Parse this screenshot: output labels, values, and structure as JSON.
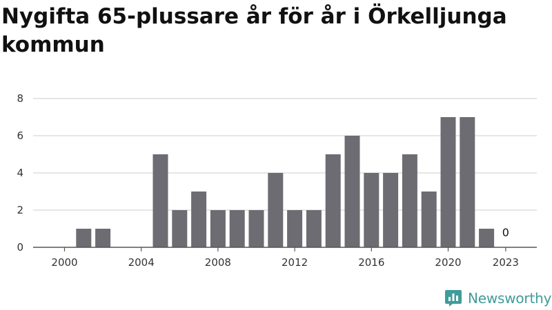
{
  "brand": {
    "name": "Newsworthy",
    "color": "#3f9c9a"
  },
  "chart_data": {
    "type": "bar",
    "title": "Nygifta 65-plussare år för år i Örkelljunga kommun",
    "xlabel": "",
    "ylabel": "",
    "categories": [
      2000,
      2001,
      2002,
      2003,
      2004,
      2005,
      2006,
      2007,
      2008,
      2009,
      2010,
      2011,
      2012,
      2013,
      2014,
      2015,
      2016,
      2017,
      2018,
      2019,
      2020,
      2021,
      2022,
      2023
    ],
    "values": [
      0,
      1,
      1,
      0,
      0,
      5,
      2,
      3,
      2,
      2,
      2,
      4,
      2,
      2,
      5,
      6,
      4,
      4,
      5,
      3,
      7,
      7,
      1,
      0
    ],
    "ylim": [
      0,
      8
    ],
    "yticks": [
      0,
      2,
      4,
      6,
      8
    ],
    "xticks": [
      2000,
      2004,
      2008,
      2012,
      2016,
      2020,
      2023
    ],
    "annotations": [
      {
        "category": 2023,
        "text": "0"
      }
    ],
    "bar_color": "#6d6c72",
    "grid": true,
    "grid_color": "#dddddd"
  }
}
